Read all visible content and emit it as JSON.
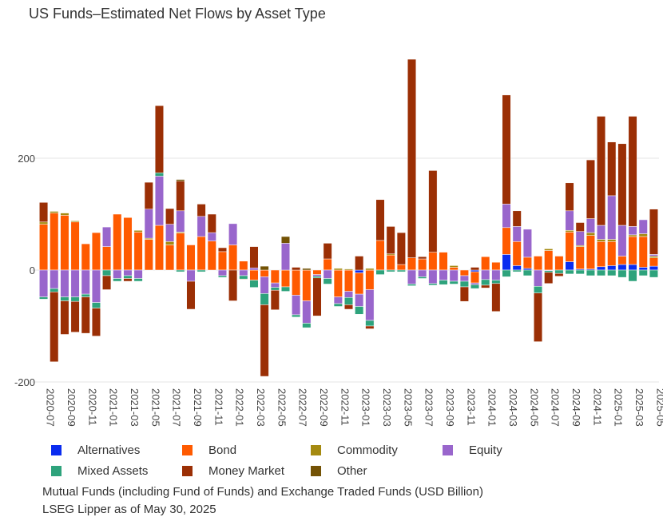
{
  "title": "US Funds–Estimated Net Flows by Asset Type",
  "footnotes": [
    "Mutual Funds (including Fund of Funds) and Exchange Traded Funds (USD Billion)",
    "LSEG Lipper as of May 30, 2025"
  ],
  "legend": [
    {
      "name": "Alternatives",
      "color": "#0a2cf0"
    },
    {
      "name": "Bond",
      "color": "#ff5a00"
    },
    {
      "name": "Commodity",
      "color": "#a58a10"
    },
    {
      "name": "Equity",
      "color": "#9966cc"
    },
    {
      "name": "Mixed Assets",
      "color": "#2ea37c"
    },
    {
      "name": "Money Market",
      "color": "#9b2f05"
    },
    {
      "name": "Other",
      "color": "#735205"
    }
  ],
  "chart_data": {
    "type": "bar",
    "stacked": true,
    "title": "US Funds–Estimated Net Flows by Asset Type",
    "ylabel": "",
    "xlabel": "",
    "ylim": [
      -200,
      400
    ],
    "yticks": [
      -200,
      0,
      200
    ],
    "grid": true,
    "legend_position": "bottom",
    "categories": [
      "2020-07",
      "2020-08",
      "2020-09",
      "2020-10",
      "2020-11",
      "2020-12",
      "2021-01",
      "2021-02",
      "2021-03",
      "2021-04",
      "2021-05",
      "2021-06",
      "2021-07",
      "2021-08",
      "2021-09",
      "2021-10",
      "2021-11",
      "2021-12",
      "2022-01",
      "2022-02",
      "2022-03",
      "2022-04",
      "2022-05",
      "2022-06",
      "2022-07",
      "2022-08",
      "2022-09",
      "2022-10",
      "2022-11",
      "2022-12",
      "2023-01",
      "2023-02",
      "2023-03",
      "2023-04",
      "2023-05",
      "2023-06",
      "2023-07",
      "2023-08",
      "2023-09",
      "2023-10",
      "2023-11",
      "2023-12",
      "2024-01",
      "2024-02",
      "2024-03",
      "2024-04",
      "2024-05",
      "2024-06",
      "2024-07",
      "2024-08",
      "2024-09",
      "2024-10",
      "2024-11",
      "2024-12",
      "2025-01",
      "2025-02",
      "2025-03",
      "2025-04",
      "2025-05"
    ],
    "tick_labels": [
      "2020-07",
      "2020-09",
      "2020-11",
      "2021-01",
      "2021-03",
      "2021-05",
      "2021-07",
      "2021-09",
      "2021-11",
      "2022-01",
      "2022-03",
      "2022-05",
      "2022-07",
      "2022-09",
      "2022-11",
      "2023-01",
      "2023-03",
      "2023-05",
      "2023-07",
      "2023-09",
      "2023-11",
      "2024-01",
      "2024-03",
      "2024-05",
      "2024-07",
      "2024-09",
      "2024-11",
      "2025-01",
      "2025-03",
      "2025-05"
    ],
    "series": [
      {
        "name": "Alternatives",
        "values": [
          0,
          0,
          0,
          0,
          0,
          0,
          0,
          0,
          0,
          0,
          0,
          0,
          0,
          0,
          0,
          0,
          0,
          0,
          0,
          0,
          0,
          0,
          0,
          0,
          0,
          0,
          0,
          0,
          0,
          0,
          -5,
          0,
          0,
          0,
          0,
          0,
          0,
          0,
          0,
          0,
          0,
          -3,
          0,
          0,
          28,
          8,
          3,
          0,
          0,
          0,
          15,
          2,
          2,
          6,
          8,
          10,
          10,
          5,
          7
        ]
      },
      {
        "name": "Bond",
        "values": [
          82,
          102,
          98,
          86,
          47,
          67,
          42,
          100,
          94,
          68,
          55,
          80,
          45,
          66,
          45,
          60,
          52,
          33,
          45,
          16,
          -18,
          -12,
          -23,
          -30,
          -45,
          -55,
          -8,
          20,
          -48,
          -38,
          -38,
          -35,
          53,
          27,
          10,
          22,
          20,
          32,
          32,
          5,
          -10,
          -20,
          24,
          14,
          48,
          43,
          20,
          25,
          35,
          25,
          53,
          40,
          60,
          45,
          43,
          15,
          50,
          55,
          15
        ]
      },
      {
        "name": "Commodity",
        "values": [
          4,
          3,
          4,
          2,
          0,
          0,
          0,
          0,
          0,
          3,
          2,
          0,
          6,
          2,
          0,
          0,
          0,
          0,
          0,
          0,
          0,
          0,
          0,
          0,
          0,
          0,
          0,
          0,
          3,
          2,
          0,
          3,
          0,
          2,
          0,
          0,
          0,
          0,
          0,
          3,
          0,
          0,
          0,
          0,
          0,
          0,
          0,
          0,
          3,
          0,
          3,
          2,
          5,
          4,
          4,
          0,
          3,
          5,
          3
        ]
      },
      {
        "name": "Equity",
        "values": [
          -48,
          -33,
          -48,
          -48,
          -43,
          -58,
          35,
          -15,
          -10,
          -15,
          52,
          88,
          31,
          38,
          -20,
          36,
          15,
          -10,
          38,
          -10,
          4,
          -30,
          -8,
          48,
          -35,
          -40,
          -3,
          -15,
          -12,
          -11,
          -22,
          -55,
          0,
          0,
          0,
          -25,
          -12,
          -24,
          -18,
          -20,
          -10,
          -3,
          -17,
          -18,
          42,
          27,
          50,
          -29,
          -1,
          0,
          35,
          25,
          25,
          25,
          78,
          55,
          15,
          25,
          3
        ]
      },
      {
        "name": "Mixed Assets",
        "values": [
          -4,
          -6,
          -7,
          -8,
          -5,
          -10,
          -10,
          -5,
          -5,
          -5,
          0,
          6,
          0,
          -3,
          0,
          -3,
          0,
          -3,
          0,
          -6,
          -13,
          -20,
          -5,
          -8,
          -4,
          -8,
          -3,
          -10,
          -5,
          -13,
          -14,
          -10,
          -8,
          -3,
          -3,
          -3,
          -3,
          -3,
          -8,
          -5,
          -10,
          -7,
          -10,
          -6,
          -12,
          -3,
          -10,
          -12,
          -3,
          -6,
          -7,
          -7,
          -10,
          -10,
          -10,
          -13,
          -20,
          -10,
          -13
        ]
      },
      {
        "name": "Money Market",
        "values": [
          35,
          -125,
          -60,
          -55,
          -65,
          -50,
          -25,
          0,
          -5,
          0,
          48,
          120,
          28,
          53,
          -50,
          22,
          33,
          7,
          -55,
          -1,
          38,
          -128,
          -35,
          0,
          5,
          0,
          -68,
          28,
          0,
          -8,
          25,
          -5,
          73,
          49,
          57,
          355,
          4,
          146,
          0,
          0,
          -26,
          5,
          -5,
          -50,
          195,
          28,
          0,
          -87,
          -20,
          -5,
          50,
          16,
          105,
          195,
          96,
          146,
          197,
          0,
          81
        ]
      },
      {
        "name": "Other",
        "values": [
          0,
          0,
          0,
          0,
          0,
          0,
          0,
          0,
          0,
          0,
          0,
          0,
          0,
          3,
          0,
          0,
          0,
          0,
          0,
          0,
          0,
          7,
          0,
          12,
          0,
          3,
          0,
          0,
          0,
          0,
          0,
          0,
          0,
          0,
          0,
          0,
          0,
          0,
          0,
          0,
          0,
          0,
          0,
          0,
          0,
          0,
          0,
          0,
          0,
          0,
          0,
          0,
          0,
          0,
          0,
          0,
          0,
          0,
          0
        ]
      }
    ]
  }
}
